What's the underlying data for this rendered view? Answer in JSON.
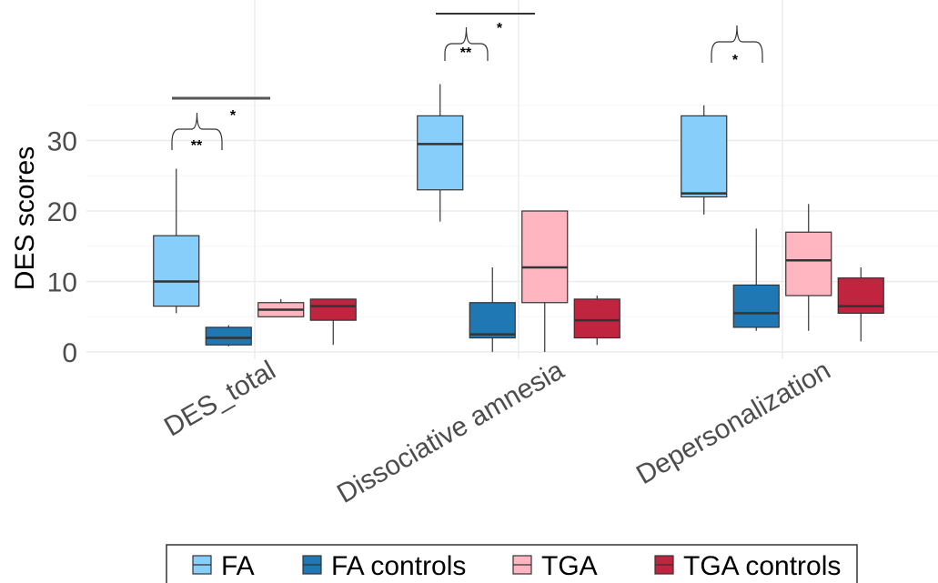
{
  "chart_data": {
    "type": "box",
    "ylabel": "DES scores",
    "ylim": [
      -0.5,
      36
    ],
    "yticks": [
      0,
      10,
      20,
      30
    ],
    "grid": true,
    "categories": [
      "DES_total",
      "Dissociative amnesia",
      "Depersonalization"
    ],
    "legend": {
      "position": "bottom",
      "entries": [
        {
          "name": "FA",
          "color": "#87CEFA"
        },
        {
          "name": "FA controls",
          "color": "#1F77B4"
        },
        {
          "name": "TGA",
          "color": "#FFB6C1"
        },
        {
          "name": "TGA controls",
          "color": "#C0243F"
        }
      ]
    },
    "series": [
      {
        "name": "FA",
        "color": "#87CEFA",
        "boxes": [
          {
            "min": 5.5,
            "q1": 6.5,
            "median": 10,
            "q3": 16.5,
            "max": 26
          },
          {
            "min": 18.5,
            "q1": 23,
            "median": 29.5,
            "q3": 33.5,
            "max": 38
          },
          {
            "min": 19.5,
            "q1": 22,
            "median": 22.5,
            "q3": 33.5,
            "max": 35
          }
        ]
      },
      {
        "name": "FA controls",
        "color": "#1F77B4",
        "boxes": [
          {
            "min": 0.8,
            "q1": 1,
            "median": 2,
            "q3": 3.5,
            "max": 3.8
          },
          {
            "min": 0,
            "q1": 2,
            "median": 2.5,
            "q3": 7,
            "max": 12
          },
          {
            "min": 3,
            "q1": 3.5,
            "median": 5.5,
            "q3": 9.5,
            "max": 17.5
          }
        ]
      },
      {
        "name": "TGA",
        "color": "#FFB6C1",
        "boxes": [
          {
            "min": 5,
            "q1": 5,
            "median": 6,
            "q3": 7,
            "max": 7.5
          },
          {
            "min": 0,
            "q1": 7,
            "median": 12,
            "q3": 20,
            "max": 20
          },
          {
            "min": 3,
            "q1": 8,
            "median": 13,
            "q3": 17,
            "max": 21
          }
        ]
      },
      {
        "name": "TGA controls",
        "color": "#C0243F",
        "boxes": [
          {
            "min": 1,
            "q1": 4.5,
            "median": 6.5,
            "q3": 7.5,
            "max": 7.5
          },
          {
            "min": 1,
            "q1": 2,
            "median": 4.5,
            "q3": 7.5,
            "max": 8
          },
          {
            "min": 1.5,
            "q1": 5.5,
            "median": 6.5,
            "q3": 10.5,
            "max": 12
          }
        ]
      }
    ],
    "annotations": [
      {
        "category": 0,
        "label": "**",
        "type": "brace",
        "from": "FA",
        "to": "FA controls"
      },
      {
        "category": 0,
        "label": "*",
        "type": "brace-line"
      },
      {
        "category": 1,
        "label": "**",
        "type": "brace",
        "from": "FA",
        "to": "FA controls"
      },
      {
        "category": 1,
        "label": "*",
        "type": "brace-line"
      },
      {
        "category": 2,
        "label": "*",
        "type": "brace",
        "from": "FA",
        "to": "FA controls"
      }
    ]
  }
}
